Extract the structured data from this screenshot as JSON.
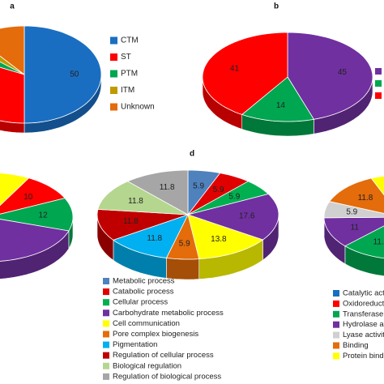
{
  "chart_data": [
    {
      "type": "pie",
      "title": "a",
      "categories": [
        "CTM",
        "ST",
        "PTM",
        "ITM",
        "Unknown"
      ],
      "values": [
        50,
        32,
        4,
        3,
        11
      ],
      "value_labels": [
        "50",
        null,
        null,
        null,
        null
      ],
      "colors": [
        "#1a6ec2",
        "#ff0000",
        "#00a650",
        "#c09a00",
        "#e46c0a"
      ]
    },
    {
      "type": "pie",
      "title": "b",
      "categories": [
        null,
        null,
        null
      ],
      "values": [
        45,
        14,
        41
      ],
      "colors": [
        "#7030a0",
        "#00a650",
        "#ff0000"
      ]
    },
    {
      "type": "pie",
      "categories": [
        null,
        null,
        null,
        null,
        null
      ],
      "values": [
        8,
        10,
        12,
        40,
        30
      ],
      "value_labels": [
        null,
        "10",
        "12",
        null,
        null
      ],
      "colors": [
        "#ffff00",
        "#ff0000",
        "#00a650",
        "#7030a0",
        "#1a6ec2"
      ]
    },
    {
      "type": "pie",
      "title": "d",
      "categories": [
        "Metabolic process",
        "Catabolic process",
        "Cellular  process",
        "Carbohydrate metabolic process",
        "Cell communication",
        "Pore complex biogenesis",
        "Pigmentation",
        "Regulation of cellular process",
        "Biological regulation",
        "Regulation of biological process"
      ],
      "values": [
        5.9,
        5.9,
        5.9,
        17.6,
        13.8,
        5.9,
        11.8,
        11.8,
        11.8,
        11.8
      ],
      "colors": [
        "#4f81bd",
        "#e00000",
        "#00b050",
        "#7030a0",
        "#ffff00",
        "#e46c0a",
        "#00b0f0",
        "#c00000",
        "#b5d68f",
        "#a6a6a6"
      ]
    },
    {
      "type": "pie",
      "categories": [
        "Catalytic activi",
        "Oxidoreductas",
        "Transferase acti",
        "Hydrolase activ",
        "Lyase activity",
        "Binding",
        "Protein binding"
      ],
      "values": [
        17.6,
        29.4,
        11.8,
        11,
        5.9,
        11.8,
        5.9
      ],
      "value_labels": [
        null,
        null,
        "11.8",
        "11",
        "5.9",
        "11.8",
        null
      ],
      "colors": [
        "#1a6ec2",
        "#ff0000",
        "#00a650",
        "#7030a0",
        "#d0d0d0",
        "#e46c0a",
        "#ffff00"
      ]
    }
  ]
}
